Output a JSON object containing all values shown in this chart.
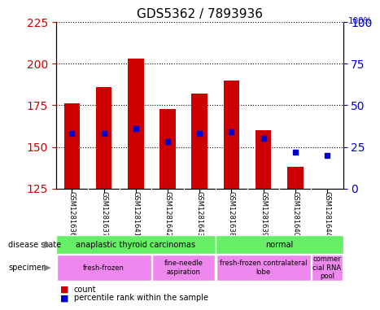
{
  "title": "GDS5362 / 7893936",
  "samples": [
    "GSM1281636",
    "GSM1281637",
    "GSM1281641",
    "GSM1281642",
    "GSM1281643",
    "GSM1281638",
    "GSM1281639",
    "GSM1281640",
    "GSM1281644"
  ],
  "bar_heights": [
    176,
    186,
    203,
    173,
    182,
    190,
    160,
    138,
    125
  ],
  "bar_base": 125,
  "percentile_ranks": [
    33,
    33,
    36,
    28,
    33,
    34,
    30,
    22,
    20
  ],
  "ylim_left": [
    125,
    225
  ],
  "ylim_right": [
    0,
    100
  ],
  "yticks_left": [
    125,
    150,
    175,
    200,
    225
  ],
  "yticks_right": [
    0,
    25,
    50,
    75,
    100
  ],
  "bar_color": "#cc0000",
  "dot_color": "#0000cc",
  "grid_color": "black",
  "disease_groups": [
    {
      "label": "anaplastic thyroid carcinomas",
      "start": 0,
      "end": 5,
      "color": "#66ee66"
    },
    {
      "label": "normal",
      "start": 5,
      "end": 9,
      "color": "#66ee66"
    }
  ],
  "specimen_groups": [
    {
      "label": "fresh-frozen",
      "start": 0,
      "end": 3,
      "color": "#ee88ee"
    },
    {
      "label": "fine-needle\naspiration",
      "start": 3,
      "end": 5,
      "color": "#ee88ee"
    },
    {
      "label": "fresh-frozen contralateral\nlobe",
      "start": 5,
      "end": 8,
      "color": "#ee88ee"
    },
    {
      "label": "commer\ncial RNA\npool",
      "start": 8,
      "end": 9,
      "color": "#ee88ee"
    }
  ],
  "left_tick_color": "#cc0000",
  "right_tick_color": "#0000cc",
  "bar_width": 0.5
}
